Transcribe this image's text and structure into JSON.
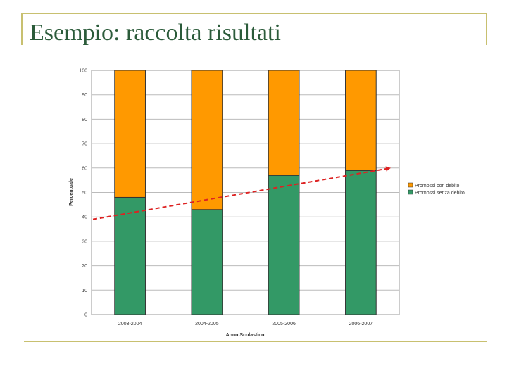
{
  "slide": {
    "title": "Esempio: raccolta risultati"
  },
  "colors": {
    "frame": "#c8c070",
    "title": "#2b5b3a",
    "orange": "#ff9900",
    "green": "#339966",
    "trend": "#dd2222"
  },
  "chart_data": {
    "type": "bar",
    "stacked": true,
    "title": "",
    "xlabel": "Anno Scolastico",
    "ylabel": "Percentuale",
    "ylim": [
      0,
      100
    ],
    "yticks": [
      0,
      10,
      20,
      30,
      40,
      50,
      60,
      70,
      80,
      90,
      100
    ],
    "grid": true,
    "legend_position": "right",
    "categories": [
      "2003-2004",
      "2004-2005",
      "2005-2006",
      "2006-2007"
    ],
    "series": [
      {
        "name": "Promossi senza debito",
        "color": "#339966",
        "values": [
          48,
          43,
          57,
          59
        ]
      },
      {
        "name": "Promossi con debito",
        "color": "#ff9900",
        "values": [
          52,
          57,
          43,
          41
        ]
      }
    ],
    "legend": [
      "Promossi con debito",
      "Promossi senza debito"
    ],
    "trendline": {
      "style": "dashed",
      "color": "#dd2222",
      "arrow": true,
      "from": 39,
      "to": 60
    }
  }
}
